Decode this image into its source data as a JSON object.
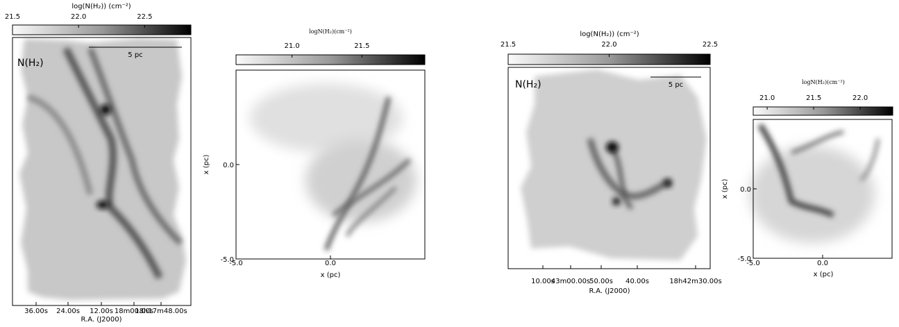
{
  "chart_data": [
    {
      "type": "map",
      "colorbar_label": "log(N(H₂)) (cm⁻²)",
      "clim": [
        21.5,
        22.85
      ],
      "cticks": [
        21.5,
        {
          "value": 22,
          "label": "22.0"
        },
        22.5
      ],
      "annotation": "N(H₂)",
      "scalebar": "5 pc",
      "categories": [
        "36.00s",
        "24.00s",
        "12.00s",
        "18m00.00s",
        "18h17m48.00s"
      ],
      "xlabel": "R.A. (J2000)"
    },
    {
      "type": "image",
      "colorbar_label": "logN(H₂)(cm⁻²)",
      "clim": [
        20.6,
        21.95
      ],
      "cticks": [
        {
          "value": 21,
          "label": "21.0"
        },
        21.5
      ],
      "xlim": [
        -5,
        5
      ],
      "ylim": [
        -5,
        5
      ],
      "xticks": [
        {
          "value": -5,
          "label": "-5.0"
        },
        {
          "value": 0,
          "label": "0.0"
        }
      ],
      "yticks": [
        {
          "value": -5,
          "label": "-5.0"
        },
        {
          "value": 0,
          "label": "0.0"
        }
      ],
      "xlabel": "x (pc)",
      "ylabel": "x (pc)"
    },
    {
      "type": "map",
      "colorbar_label": "log(N(H₂)) (cm⁻²)",
      "clim": [
        21.5,
        22.5
      ],
      "cticks": [
        21.5,
        {
          "value": 22,
          "label": "22.0"
        },
        22.5
      ],
      "annotation": "N(H₂)",
      "scalebar": "5 pc",
      "categories": [
        "10.00s",
        "43m00.00s",
        "50.00s",
        "40.00s",
        "18h42m30.00s"
      ],
      "xlabel": "R.A. (J2000)"
    },
    {
      "type": "image",
      "colorbar_label": "logN(H₂)(cm⁻²)",
      "clim": [
        20.85,
        22.35
      ],
      "cticks": [
        {
          "value": 21,
          "label": "21.0"
        },
        21.5,
        {
          "value": 22,
          "label": "22.0"
        }
      ],
      "xlim": [
        -5,
        5
      ],
      "ylim": [
        -5,
        5
      ],
      "xticks": [
        {
          "value": -5,
          "label": "-5.0"
        },
        {
          "value": 0,
          "label": "0.0"
        }
      ],
      "yticks": [
        {
          "value": -5,
          "label": "-5.0"
        },
        {
          "value": 0,
          "label": "0.0"
        }
      ],
      "xlabel": "x (pc)",
      "ylabel": "x (pc)"
    }
  ]
}
